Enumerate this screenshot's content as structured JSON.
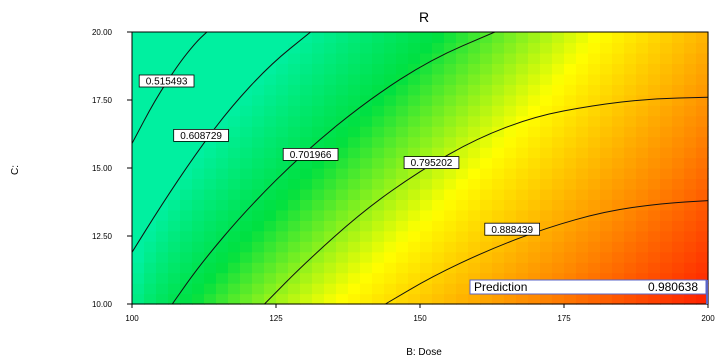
{
  "chart_data": {
    "type": "heatmap",
    "title": "R",
    "xlabel": "B: Dose",
    "ylabel": "C: ",
    "xlim": [
      100,
      200
    ],
    "ylim": [
      10,
      20
    ],
    "x_ticks": [
      "100",
      "125",
      "150",
      "175",
      "200"
    ],
    "y_ticks": [
      "10.00",
      "12.50",
      "15.00",
      "17.50",
      "20.00"
    ],
    "x_tick_values": [
      100,
      125,
      150,
      175,
      200
    ],
    "y_tick_values": [
      10,
      12.5,
      15,
      17.5,
      20
    ],
    "value_range": [
      0.42,
      1.0
    ],
    "colormap": [
      "#00f0a0",
      "#00e040",
      "#ffff00",
      "#ff8800",
      "#ff0000"
    ],
    "contours": [
      {
        "label": "0.515493",
        "value": 0.515493,
        "label_x": 106,
        "label_y": 18.2,
        "points": [
          [
            100,
            15.9
          ],
          [
            104,
            17.5
          ],
          [
            108,
            18.8
          ],
          [
            111,
            19.6
          ],
          [
            113,
            20
          ]
        ]
      },
      {
        "label": "0.608729",
        "value": 0.608729,
        "label_x": 112,
        "label_y": 16.2,
        "points": [
          [
            100,
            11.9
          ],
          [
            105,
            13.6
          ],
          [
            111,
            15.5
          ],
          [
            117,
            17.2
          ],
          [
            124,
            18.8
          ],
          [
            131,
            20
          ]
        ]
      },
      {
        "label": "0.701966",
        "value": 0.701966,
        "label_x": 131,
        "label_y": 15.5,
        "points": [
          [
            107,
            10
          ],
          [
            112,
            11.5
          ],
          [
            120,
            13.5
          ],
          [
            130,
            15.6
          ],
          [
            141,
            17.5
          ],
          [
            152,
            19
          ],
          [
            163,
            20
          ]
        ]
      },
      {
        "label": "0.795202",
        "value": 0.795202,
        "label_x": 152,
        "label_y": 15.2,
        "points": [
          [
            123,
            10
          ],
          [
            130,
            11.5
          ],
          [
            140,
            13.4
          ],
          [
            150,
            14.9
          ],
          [
            160,
            16.1
          ],
          [
            170,
            16.9
          ],
          [
            180,
            17.3
          ],
          [
            190,
            17.55
          ],
          [
            200,
            17.6
          ]
        ]
      },
      {
        "label": "0.888439",
        "value": 0.888439,
        "label_x": 166,
        "label_y": 12.75,
        "points": [
          [
            144,
            10
          ],
          [
            152,
            11
          ],
          [
            162,
            12
          ],
          [
            172,
            12.8
          ],
          [
            182,
            13.4
          ],
          [
            192,
            13.7
          ],
          [
            200,
            13.8
          ]
        ]
      }
    ],
    "prediction": {
      "label": "Prediction",
      "value": "0.980638",
      "x": 200,
      "y": 10
    }
  }
}
